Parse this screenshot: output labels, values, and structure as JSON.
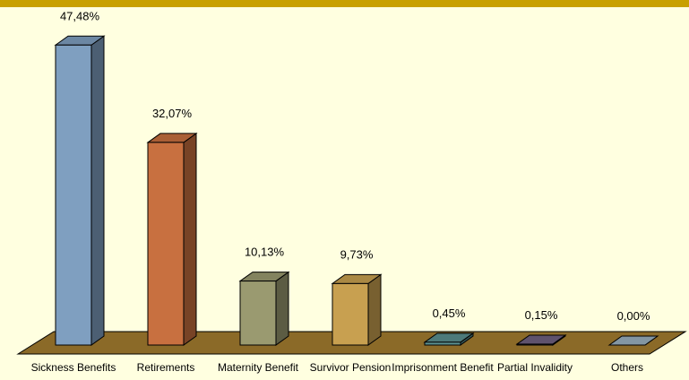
{
  "chart_data": {
    "type": "bar3d",
    "categories": [
      "Sickness Benefits",
      "Retirements",
      "Maternity Benefit",
      "Survivor Pension",
      "Imprisonment Benefit",
      "Partial Invalidity",
      "Others"
    ],
    "values": [
      47.48,
      32.07,
      10.13,
      9.73,
      0.45,
      0.15,
      0.0
    ],
    "value_labels": [
      "47,48%",
      "32,07%",
      "10,13%",
      "9,73%",
      "0,45%",
      "0,15%",
      "0,00%"
    ],
    "colors": [
      "#7f9fc0",
      "#c87040",
      "#9a9a70",
      "#c8a050",
      "#5a9090",
      "#706080",
      "#9ab0c0"
    ]
  }
}
